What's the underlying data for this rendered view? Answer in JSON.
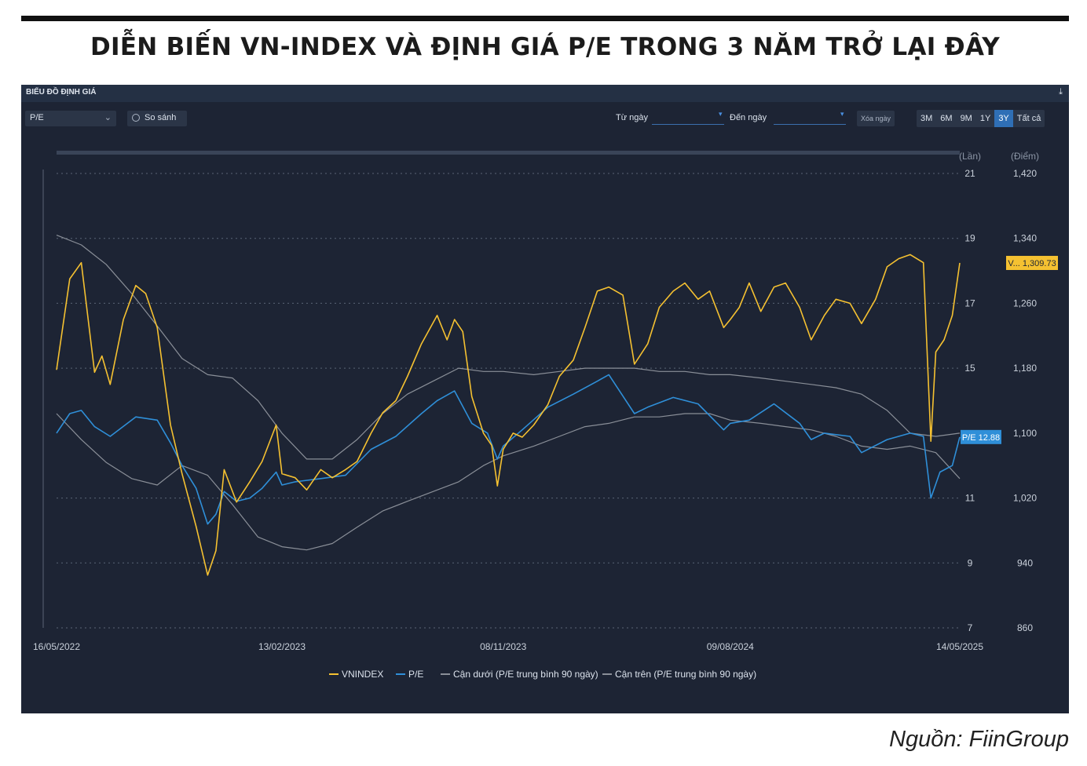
{
  "headline": "DIỄN BIẾN VN-INDEX VÀ ĐỊNH GIÁ P/E TRONG 3 NĂM TRỞ LẠI ĐÂY",
  "panel": {
    "title": "BIỂU ĐỒ ĐỊNH GIÁ",
    "download_icon": "download-icon",
    "metric_select": "P/E",
    "compare_label": "So sánh",
    "from_label": "Từ ngày",
    "to_label": "Đến ngày",
    "clear_label": "Xóa ngày",
    "ranges": [
      "3M",
      "6M",
      "9M",
      "1Y",
      "3Y",
      "Tất cả"
    ],
    "active_range": "3Y"
  },
  "source": "Nguồn: FiinGroup",
  "colors": {
    "vnindex": "#f5c131",
    "pe": "#2f8fd8",
    "bands": "#8a8f98",
    "background": "#1d2434"
  },
  "chart_data": {
    "type": "line",
    "x_ticks": [
      "16/05/2022",
      "13/02/2023",
      "08/11/2023",
      "09/08/2024",
      "14/05/2025"
    ],
    "x_range": [
      "16/05/2022",
      "14/05/2025"
    ],
    "left_axis": {
      "label": "(Lần)",
      "ticks": [
        21,
        19,
        17,
        15,
        11,
        9,
        7
      ],
      "range": [
        7,
        21
      ]
    },
    "right_axis": {
      "label": "(Điểm)",
      "ticks": [
        "1,420",
        "1,340",
        "1,260",
        "1,180",
        "1,100",
        "1,020",
        "940",
        "860"
      ],
      "range": [
        860,
        1420
      ]
    },
    "grid": "horizontal",
    "legend_position": "bottom",
    "last_value_labels": {
      "vnindex": "V... 1,309.73",
      "pe": "P/E 12.88"
    },
    "series": [
      {
        "name": "VNINDEX",
        "axis": "right",
        "points": [
          [
            "2022-05-16",
            1178
          ],
          [
            "2022-06-01",
            1290
          ],
          [
            "2022-06-15",
            1310
          ],
          [
            "2022-07-01",
            1175
          ],
          [
            "2022-07-10",
            1195
          ],
          [
            "2022-07-20",
            1160
          ],
          [
            "2022-08-05",
            1240
          ],
          [
            "2022-08-20",
            1282
          ],
          [
            "2022-09-01",
            1272
          ],
          [
            "2022-09-15",
            1230
          ],
          [
            "2022-10-01",
            1110
          ],
          [
            "2022-10-15",
            1050
          ],
          [
            "2022-11-01",
            985
          ],
          [
            "2022-11-15",
            925
          ],
          [
            "2022-11-25",
            955
          ],
          [
            "2022-12-05",
            1055
          ],
          [
            "2022-12-20",
            1015
          ],
          [
            "2023-01-05",
            1040
          ],
          [
            "2023-01-20",
            1065
          ],
          [
            "2023-02-06",
            1110
          ],
          [
            "2023-02-13",
            1050
          ],
          [
            "2023-03-01",
            1045
          ],
          [
            "2023-03-15",
            1030
          ],
          [
            "2023-04-01",
            1055
          ],
          [
            "2023-04-15",
            1045
          ],
          [
            "2023-05-01",
            1055
          ],
          [
            "2023-05-15",
            1065
          ],
          [
            "2023-06-01",
            1100
          ],
          [
            "2023-06-15",
            1125
          ],
          [
            "2023-07-01",
            1140
          ],
          [
            "2023-07-15",
            1170
          ],
          [
            "2023-08-01",
            1210
          ],
          [
            "2023-08-20",
            1245
          ],
          [
            "2023-09-01",
            1215
          ],
          [
            "2023-09-10",
            1240
          ],
          [
            "2023-09-20",
            1225
          ],
          [
            "2023-10-01",
            1145
          ],
          [
            "2023-10-15",
            1100
          ],
          [
            "2023-10-25",
            1085
          ],
          [
            "2023-11-01",
            1035
          ],
          [
            "2023-11-08",
            1080
          ],
          [
            "2023-11-20",
            1100
          ],
          [
            "2023-12-01",
            1095
          ],
          [
            "2023-12-15",
            1110
          ],
          [
            "2024-01-01",
            1135
          ],
          [
            "2024-01-15",
            1170
          ],
          [
            "2024-02-01",
            1190
          ],
          [
            "2024-02-15",
            1230
          ],
          [
            "2024-03-01",
            1275
          ],
          [
            "2024-03-15",
            1280
          ],
          [
            "2024-04-01",
            1270
          ],
          [
            "2024-04-15",
            1185
          ],
          [
            "2024-05-01",
            1210
          ],
          [
            "2024-05-15",
            1255
          ],
          [
            "2024-06-01",
            1275
          ],
          [
            "2024-06-15",
            1285
          ],
          [
            "2024-07-01",
            1265
          ],
          [
            "2024-07-15",
            1275
          ],
          [
            "2024-08-01",
            1230
          ],
          [
            "2024-08-09",
            1240
          ],
          [
            "2024-08-20",
            1255
          ],
          [
            "2024-09-01",
            1285
          ],
          [
            "2024-09-15",
            1250
          ],
          [
            "2024-10-01",
            1280
          ],
          [
            "2024-10-15",
            1285
          ],
          [
            "2024-11-01",
            1255
          ],
          [
            "2024-11-15",
            1215
          ],
          [
            "2024-12-01",
            1245
          ],
          [
            "2024-12-15",
            1265
          ],
          [
            "2025-01-01",
            1260
          ],
          [
            "2025-01-15",
            1235
          ],
          [
            "2025-02-01",
            1265
          ],
          [
            "2025-02-15",
            1305
          ],
          [
            "2025-03-01",
            1315
          ],
          [
            "2025-03-15",
            1320
          ],
          [
            "2025-03-31",
            1310
          ],
          [
            "2025-04-09",
            1090
          ],
          [
            "2025-04-15",
            1200
          ],
          [
            "2025-04-25",
            1215
          ],
          [
            "2025-05-05",
            1245
          ],
          [
            "2025-05-14",
            1309.73
          ]
        ]
      },
      {
        "name": "P/E",
        "axis": "left",
        "points": [
          [
            "2022-05-16",
            13.0
          ],
          [
            "2022-06-01",
            13.6
          ],
          [
            "2022-06-15",
            13.7
          ],
          [
            "2022-07-01",
            13.2
          ],
          [
            "2022-07-20",
            12.9
          ],
          [
            "2022-08-20",
            13.5
          ],
          [
            "2022-09-15",
            13.4
          ],
          [
            "2022-10-01",
            12.7
          ],
          [
            "2022-10-15",
            12.0
          ],
          [
            "2022-11-01",
            11.3
          ],
          [
            "2022-11-15",
            10.2
          ],
          [
            "2022-11-25",
            10.5
          ],
          [
            "2022-12-05",
            11.2
          ],
          [
            "2022-12-20",
            10.9
          ],
          [
            "2023-01-05",
            11.0
          ],
          [
            "2023-01-20",
            11.3
          ],
          [
            "2023-02-06",
            11.8
          ],
          [
            "2023-02-13",
            11.4
          ],
          [
            "2023-03-01",
            11.5
          ],
          [
            "2023-04-01",
            11.6
          ],
          [
            "2023-05-01",
            11.7
          ],
          [
            "2023-06-01",
            12.5
          ],
          [
            "2023-07-01",
            12.9
          ],
          [
            "2023-08-01",
            13.6
          ],
          [
            "2023-08-20",
            14.0
          ],
          [
            "2023-09-10",
            14.3
          ],
          [
            "2023-10-01",
            13.3
          ],
          [
            "2023-10-20",
            13.0
          ],
          [
            "2023-11-01",
            12.2
          ],
          [
            "2023-11-08",
            12.6
          ],
          [
            "2023-12-01",
            13.1
          ],
          [
            "2024-01-01",
            13.8
          ],
          [
            "2024-02-01",
            14.2
          ],
          [
            "2024-03-01",
            14.6
          ],
          [
            "2024-03-15",
            14.8
          ],
          [
            "2024-04-15",
            13.6
          ],
          [
            "2024-05-01",
            13.8
          ],
          [
            "2024-06-01",
            14.1
          ],
          [
            "2024-07-01",
            13.9
          ],
          [
            "2024-08-01",
            13.1
          ],
          [
            "2024-08-09",
            13.3
          ],
          [
            "2024-09-01",
            13.4
          ],
          [
            "2024-10-01",
            13.9
          ],
          [
            "2024-11-01",
            13.3
          ],
          [
            "2024-11-15",
            12.8
          ],
          [
            "2024-12-01",
            13.0
          ],
          [
            "2025-01-01",
            12.9
          ],
          [
            "2025-01-15",
            12.4
          ],
          [
            "2025-02-15",
            12.8
          ],
          [
            "2025-03-15",
            13.0
          ],
          [
            "2025-03-31",
            12.9
          ],
          [
            "2025-04-09",
            11.0
          ],
          [
            "2025-04-20",
            11.8
          ],
          [
            "2025-05-05",
            12.0
          ],
          [
            "2025-05-14",
            12.88
          ]
        ]
      },
      {
        "name": "Cận dưới (P/E trung bình 90 ngày)",
        "axis": "left",
        "points": [
          [
            "2022-05-16",
            13.6
          ],
          [
            "2022-06-15",
            12.8
          ],
          [
            "2022-07-15",
            12.1
          ],
          [
            "2022-08-15",
            11.6
          ],
          [
            "2022-09-15",
            11.4
          ],
          [
            "2022-10-15",
            12.0
          ],
          [
            "2022-11-15",
            11.7
          ],
          [
            "2022-12-15",
            10.8
          ],
          [
            "2023-01-15",
            9.8
          ],
          [
            "2023-02-13",
            9.5
          ],
          [
            "2023-03-15",
            9.4
          ],
          [
            "2023-04-15",
            9.6
          ],
          [
            "2023-05-15",
            10.1
          ],
          [
            "2023-06-15",
            10.6
          ],
          [
            "2023-07-15",
            10.9
          ],
          [
            "2023-08-15",
            11.2
          ],
          [
            "2023-09-15",
            11.5
          ],
          [
            "2023-10-15",
            12.0
          ],
          [
            "2023-11-08",
            12.3
          ],
          [
            "2023-12-15",
            12.6
          ],
          [
            "2024-01-15",
            12.9
          ],
          [
            "2024-02-15",
            13.2
          ],
          [
            "2024-03-15",
            13.3
          ],
          [
            "2024-04-15",
            13.5
          ],
          [
            "2024-05-15",
            13.5
          ],
          [
            "2024-06-15",
            13.6
          ],
          [
            "2024-07-15",
            13.6
          ],
          [
            "2024-08-09",
            13.4
          ],
          [
            "2024-09-15",
            13.3
          ],
          [
            "2024-10-15",
            13.2
          ],
          [
            "2024-11-15",
            13.1
          ],
          [
            "2024-12-15",
            12.9
          ],
          [
            "2025-01-15",
            12.6
          ],
          [
            "2025-02-15",
            12.5
          ],
          [
            "2025-03-15",
            12.6
          ],
          [
            "2025-04-15",
            12.4
          ],
          [
            "2025-05-14",
            11.6
          ]
        ]
      },
      {
        "name": "Cận trên (P/E trung bình 90 ngày)",
        "axis": "left",
        "points": [
          [
            "2022-05-16",
            19.1
          ],
          [
            "2022-06-15",
            18.8
          ],
          [
            "2022-07-15",
            18.2
          ],
          [
            "2022-08-15",
            17.3
          ],
          [
            "2022-09-15",
            16.3
          ],
          [
            "2022-10-15",
            15.3
          ],
          [
            "2022-11-15",
            14.8
          ],
          [
            "2022-12-15",
            14.7
          ],
          [
            "2023-01-15",
            14.0
          ],
          [
            "2023-02-13",
            13.0
          ],
          [
            "2023-03-15",
            12.2
          ],
          [
            "2023-04-15",
            12.2
          ],
          [
            "2023-05-15",
            12.8
          ],
          [
            "2023-06-15",
            13.6
          ],
          [
            "2023-07-15",
            14.2
          ],
          [
            "2023-08-15",
            14.6
          ],
          [
            "2023-09-15",
            15.0
          ],
          [
            "2023-10-15",
            14.9
          ],
          [
            "2023-11-08",
            14.9
          ],
          [
            "2023-12-15",
            14.8
          ],
          [
            "2024-01-15",
            14.9
          ],
          [
            "2024-02-15",
            15.0
          ],
          [
            "2024-03-15",
            15.0
          ],
          [
            "2024-04-15",
            15.0
          ],
          [
            "2024-05-15",
            14.9
          ],
          [
            "2024-06-15",
            14.9
          ],
          [
            "2024-07-15",
            14.8
          ],
          [
            "2024-08-09",
            14.8
          ],
          [
            "2024-09-15",
            14.7
          ],
          [
            "2024-10-15",
            14.6
          ],
          [
            "2024-11-15",
            14.5
          ],
          [
            "2024-12-15",
            14.4
          ],
          [
            "2025-01-15",
            14.2
          ],
          [
            "2025-02-15",
            13.7
          ],
          [
            "2025-03-15",
            13.0
          ],
          [
            "2025-04-15",
            12.9
          ],
          [
            "2025-05-14",
            13.0
          ]
        ]
      }
    ]
  }
}
